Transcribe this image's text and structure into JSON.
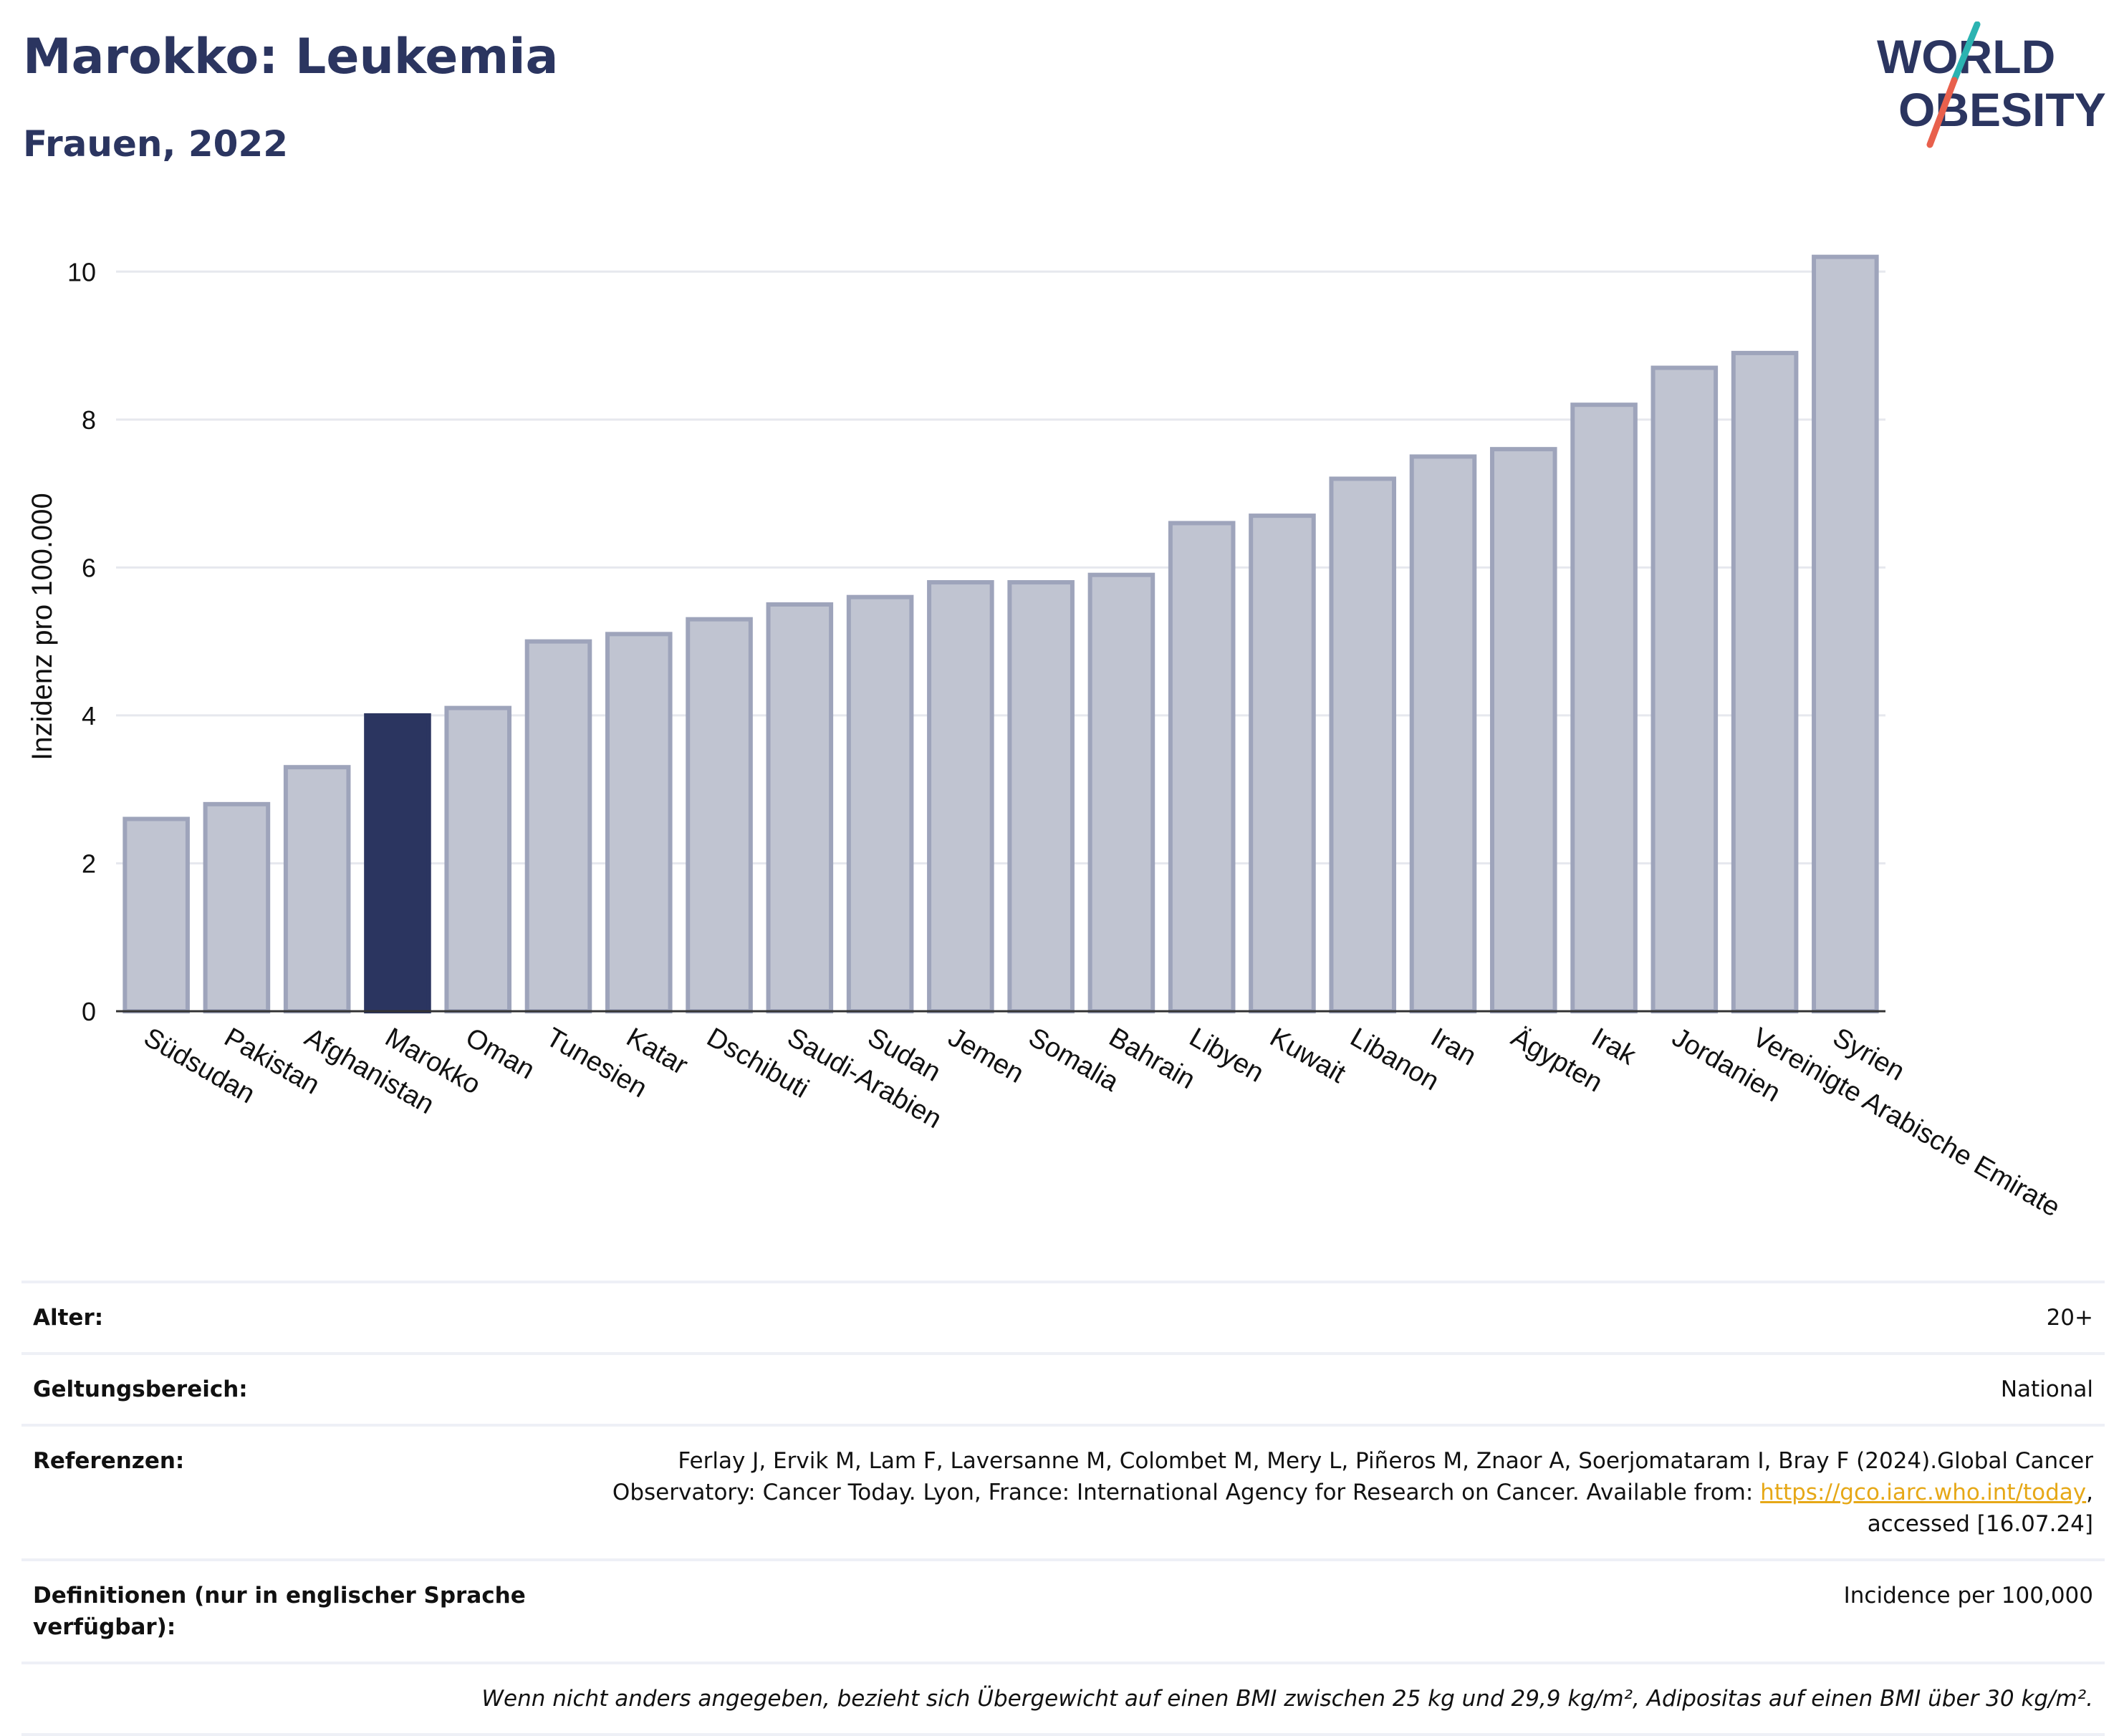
{
  "header": {
    "title": "Marokko: Leukemia",
    "subtitle": "Frauen, 2022"
  },
  "logo": {
    "line1": "WORLD",
    "line2": "OBESITY",
    "colors": {
      "text": "#2b3560",
      "slash_top": "#2bb3b1",
      "slash_bottom": "#e8604c"
    }
  },
  "colors": {
    "highlight": "#2b3560",
    "bar_fill": "#c0c4d1",
    "bar_stroke": "#9ea4bb",
    "grid": "#e6e8ee",
    "axis": "#333333"
  },
  "chart_data": {
    "type": "bar",
    "ylabel": "Inzidenz pro 100.000",
    "xlabel": "",
    "ylim": [
      0,
      10.4
    ],
    "yticks": [
      0,
      2,
      4,
      6,
      8,
      10
    ],
    "grid": true,
    "highlight": "Marokko",
    "categories": [
      "Südsudan",
      "Pakistan",
      "Afghanistan",
      "Marokko",
      "Oman",
      "Tunesien",
      "Katar",
      "Dschibuti",
      "Saudi-Arabien",
      "Sudan",
      "Jemen",
      "Somalia",
      "Bahrain",
      "Libyen",
      "Kuwait",
      "Libanon",
      "Iran",
      "Ägypten",
      "Irak",
      "Jordanien",
      "Vereinigte Arabische Emirate",
      "Syrien"
    ],
    "values": [
      2.6,
      2.8,
      3.3,
      4.0,
      4.1,
      5.0,
      5.1,
      5.3,
      5.5,
      5.6,
      5.8,
      5.8,
      5.9,
      6.6,
      6.7,
      7.2,
      7.5,
      7.6,
      8.2,
      8.7,
      8.9,
      10.2
    ]
  },
  "meta": {
    "age_label": "Alter:",
    "age_value": "20+",
    "scope_label": "Geltungsbereich:",
    "scope_value": "National",
    "ref_label": "Referenzen:",
    "ref_text_1": "Ferlay J, Ervik M, Lam F, Laversanne M, Colombet M, Mery L, Piñeros M, Znaor A, Soerjomataram I, Bray F (2024).Global Cancer",
    "ref_text_2": "Observatory: Cancer Today. Lyon, France: International Agency for Research on Cancer. Available from: ",
    "ref_link": "https://gco.iarc.who.int/today",
    "ref_text_3": ",",
    "ref_text_4": "accessed [16.07.24]",
    "def_label": "Definitionen (nur in englischer Sprache verfügbar):",
    "def_value": "Incidence per 100,000",
    "note": "Wenn nicht anders angegeben, bezieht sich Übergewicht auf einen BMI zwischen 25 kg und 29,9 kg/m², Adipositas auf einen BMI über 30 kg/m²."
  }
}
